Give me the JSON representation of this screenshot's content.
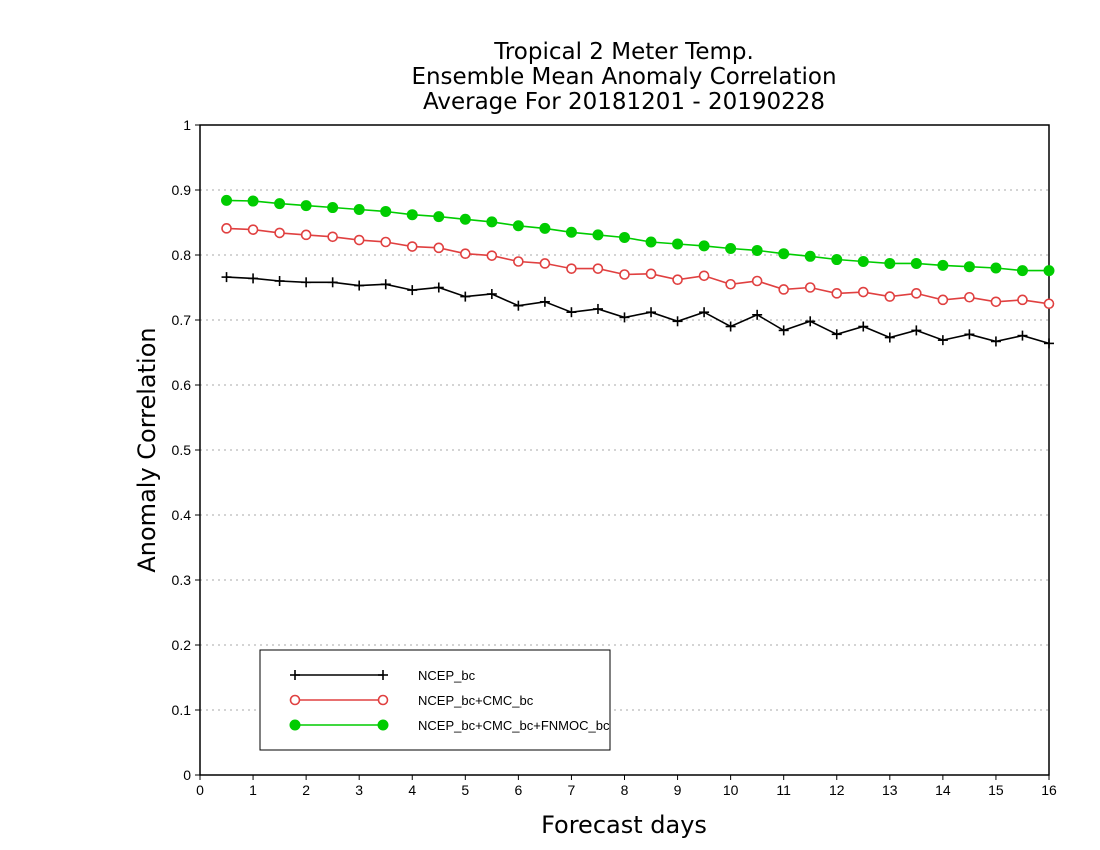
{
  "chart_data": {
    "type": "line",
    "title_lines": [
      "Tropical 2 Meter Temp.",
      "Ensemble Mean Anomaly Correlation",
      "Average For 20181201 - 20190228"
    ],
    "xlabel": "Forecast days",
    "ylabel": "Anomaly Correlation",
    "xlim": [
      0,
      16
    ],
    "ylim": [
      0,
      1
    ],
    "xticks": [
      "0",
      "1",
      "2",
      "3",
      "4",
      "5",
      "6",
      "7",
      "8",
      "9",
      "10",
      "11",
      "12",
      "13",
      "14",
      "15",
      "16"
    ],
    "yticks": [
      "0",
      "0.1",
      "0.2",
      "0.3",
      "0.4",
      "0.5",
      "0.6",
      "0.7",
      "0.8",
      "0.9",
      "1"
    ],
    "grid": "horizontal dotted",
    "legend_position": "bottom-left",
    "x": [
      0.5,
      1,
      1.5,
      2,
      2.5,
      3,
      3.5,
      4,
      4.5,
      5,
      5.5,
      6,
      6.5,
      7,
      7.5,
      8,
      8.5,
      9,
      9.5,
      10,
      10.5,
      11,
      11.5,
      12,
      12.5,
      13,
      13.5,
      14,
      14.5,
      15,
      15.5,
      16
    ],
    "series": [
      {
        "name": "NCEP_bc",
        "color": "#000000",
        "marker": "plus",
        "values": [
          0.766,
          0.764,
          0.76,
          0.758,
          0.758,
          0.753,
          0.755,
          0.746,
          0.75,
          0.736,
          0.74,
          0.722,
          0.728,
          0.712,
          0.717,
          0.704,
          0.712,
          0.698,
          0.712,
          0.69,
          0.708,
          0.684,
          0.698,
          0.678,
          0.69,
          0.673,
          0.684,
          0.669,
          0.678,
          0.667,
          0.676,
          0.664
        ]
      },
      {
        "name": "NCEP_bc+CMC_bc",
        "color": "#e04040",
        "marker": "open-circle",
        "values": [
          0.841,
          0.839,
          0.834,
          0.831,
          0.828,
          0.823,
          0.82,
          0.813,
          0.811,
          0.802,
          0.799,
          0.79,
          0.787,
          0.779,
          0.779,
          0.77,
          0.771,
          0.762,
          0.768,
          0.755,
          0.76,
          0.747,
          0.75,
          0.741,
          0.743,
          0.736,
          0.741,
          0.731,
          0.735,
          0.728,
          0.731,
          0.725
        ]
      },
      {
        "name": "NCEP_bc+CMC_bc+FNMOC_bc",
        "color": "#00cc00",
        "marker": "filled-circle",
        "values": [
          0.884,
          0.883,
          0.879,
          0.876,
          0.873,
          0.87,
          0.867,
          0.862,
          0.859,
          0.855,
          0.851,
          0.845,
          0.841,
          0.835,
          0.831,
          0.827,
          0.82,
          0.817,
          0.814,
          0.81,
          0.807,
          0.802,
          0.798,
          0.793,
          0.79,
          0.787,
          0.787,
          0.784,
          0.782,
          0.78,
          0.776,
          0.776
        ]
      }
    ]
  }
}
